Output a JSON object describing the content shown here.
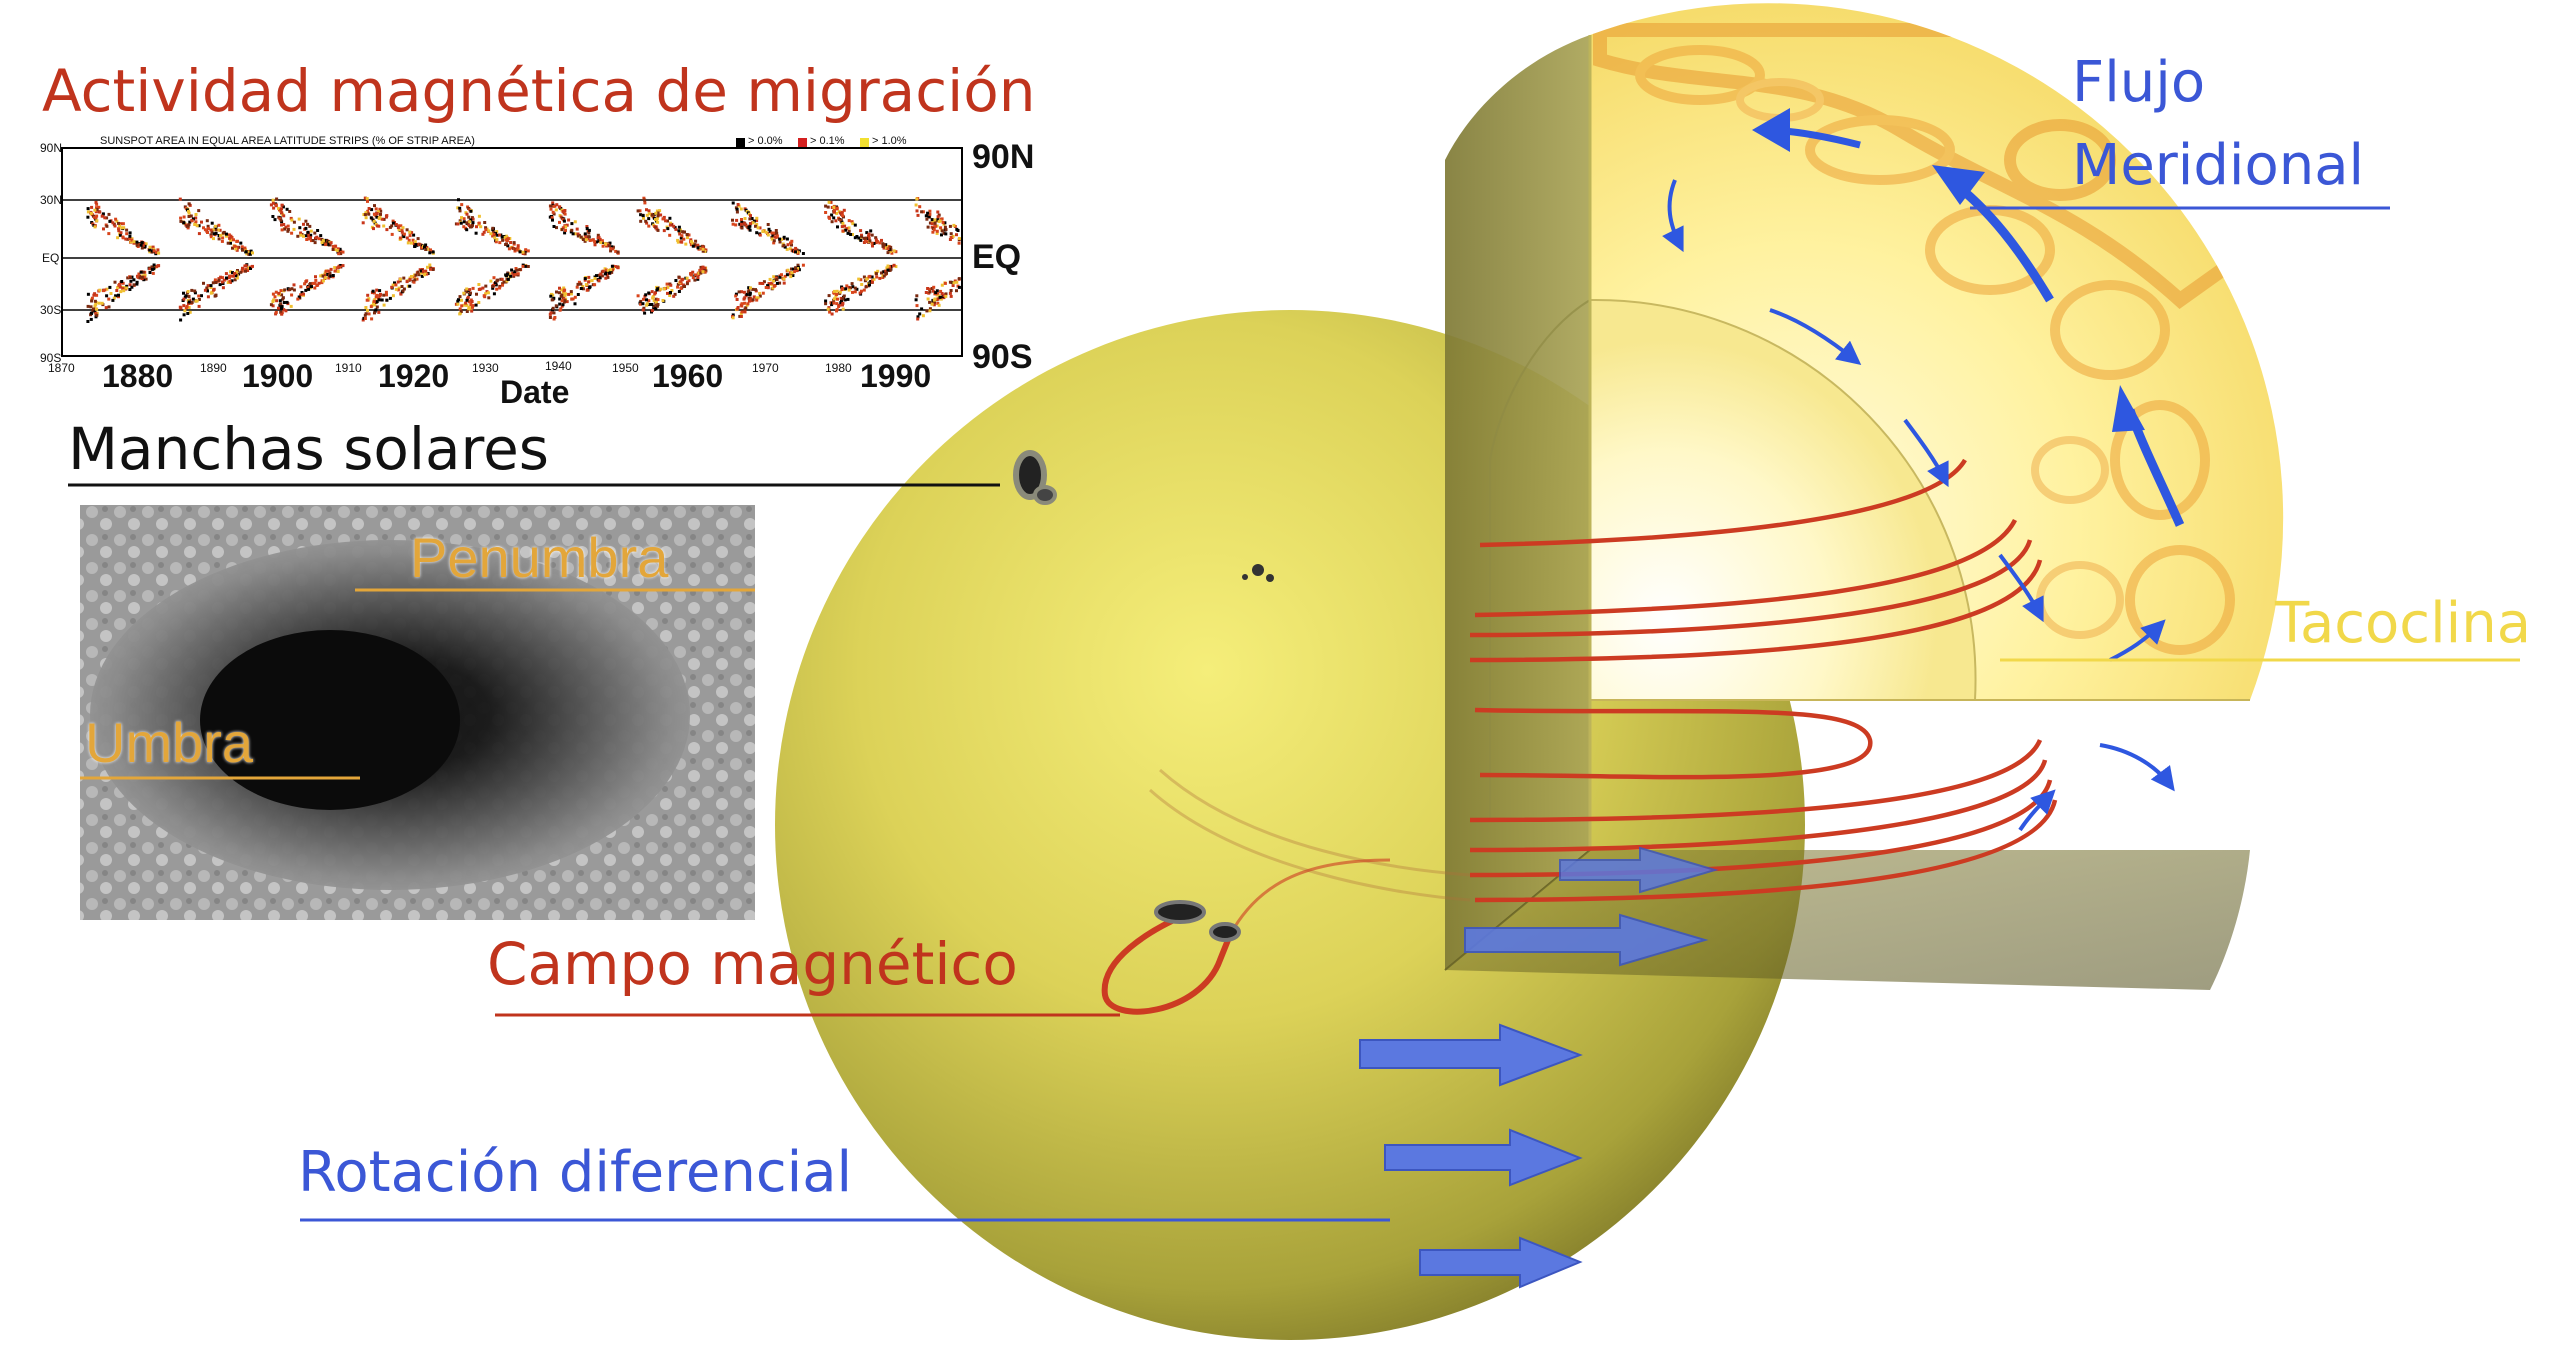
{
  "labels": {
    "migration": "Actividad magnética de migración",
    "sunspots": "Manchas solares",
    "penumbra": "Penumbra",
    "umbra": "Umbra",
    "magnetic_field": "Campo magnético",
    "diff_rotation": "Rotación diferencial",
    "meridional_line1": "Flujo",
    "meridional_line2": "Meridional",
    "tachocline": "Tacoclina"
  },
  "butterfly": {
    "header": "SUNSPOT AREA IN EQUAL AREA LATITUDE STRIPS (% OF STRIP AREA)",
    "legend": [
      "> 0.0%",
      "> 0.1%",
      "> 1.0%"
    ],
    "lat_ticks": [
      "90N",
      "30N",
      "EQ",
      "30S",
      "90S"
    ],
    "right_labels": [
      "90N",
      "EQ",
      "90S"
    ],
    "decades_big": [
      "1880",
      "1900",
      "1920",
      "1960",
      "1990"
    ],
    "decades_small": [
      "1870",
      "1890",
      "1910",
      "1930",
      "1940",
      "1950",
      "1970",
      "1980"
    ],
    "xlabel": "Date"
  },
  "colors": {
    "red": "#c0341d",
    "blue": "#3b57d6",
    "yellow": "#f1d84a",
    "sun": "#d8cf4f"
  }
}
